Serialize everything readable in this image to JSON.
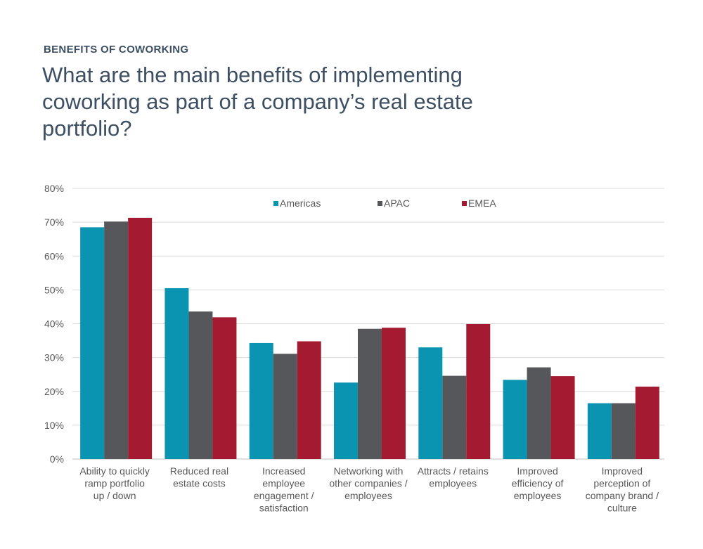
{
  "header": {
    "kicker": "BENEFITS OF COWORKING",
    "title": "What are the main benefits of implementing coworking as part of a company’s real estate portfolio?"
  },
  "colors": {
    "Americas": "#0b93b2",
    "APAC": "#55575a",
    "EMEA": "#a41a30",
    "grid": "#d9d9d9",
    "text": "#595959",
    "heading": "#3d4f63"
  },
  "chart_data": {
    "type": "bar",
    "title": "",
    "xlabel": "",
    "ylabel": "",
    "ylim": [
      0,
      80
    ],
    "yticks": [
      "0%",
      "10%",
      "20%",
      "30%",
      "40%",
      "50%",
      "60%",
      "70%",
      "80%"
    ],
    "grid": true,
    "legend_position": "top",
    "categories": [
      [
        "Ability to quickly",
        "ramp portfolio",
        "up / down"
      ],
      [
        "Reduced real",
        "estate costs"
      ],
      [
        "Increased",
        "employee",
        "engagement /",
        "satisfaction"
      ],
      [
        "Networking with",
        "other companies /",
        "employees"
      ],
      [
        "Attracts / retains",
        "employees"
      ],
      [
        "Improved",
        "efficiency of",
        "employees"
      ],
      [
        "Improved",
        "perception of",
        "company brand /",
        "culture"
      ]
    ],
    "series": [
      {
        "name": "Americas",
        "values": [
          68.5,
          50.5,
          34.3,
          22.6,
          33.0,
          23.4,
          16.5
        ]
      },
      {
        "name": "APAC",
        "values": [
          70.2,
          43.6,
          31.1,
          38.5,
          24.6,
          27.1,
          16.5
        ]
      },
      {
        "name": "EMEA",
        "values": [
          71.3,
          41.9,
          34.8,
          38.8,
          39.9,
          24.5,
          21.4
        ]
      }
    ]
  }
}
